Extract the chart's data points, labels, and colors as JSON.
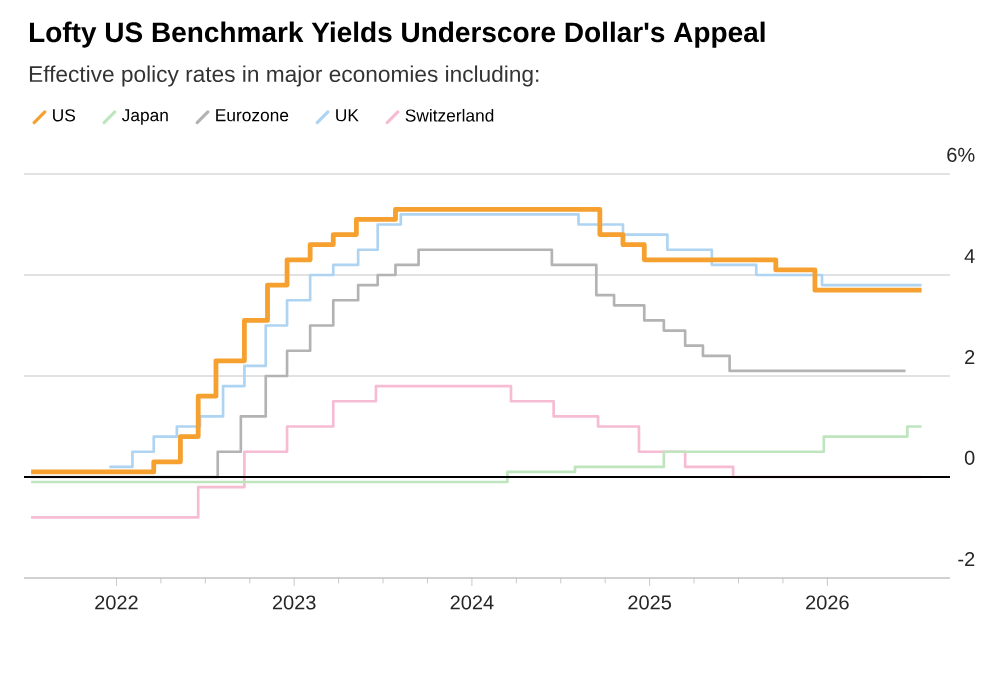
{
  "chart_data": {
    "type": "step",
    "title": "Lofty US Benchmark Yields Underscore Dollar's Appeal",
    "subtitle": "Effective policy rates in major economies including:",
    "series": [
      {
        "name": "US",
        "color": "#f5a02f",
        "x": [
          2021.52,
          2022.21,
          2022.36,
          2022.46,
          2022.56,
          2022.72,
          2022.85,
          2022.96,
          2023.09,
          2023.22,
          2023.35,
          2023.57,
          2024.72,
          2024.85,
          2024.97,
          2025.71,
          2025.93,
          2026.53
        ],
        "values": [
          0.1,
          0.3,
          0.8,
          1.6,
          2.3,
          3.1,
          3.8,
          4.3,
          4.6,
          4.8,
          5.1,
          5.3,
          4.8,
          4.6,
          4.3,
          4.1,
          3.7,
          3.7
        ]
      },
      {
        "name": "Japan",
        "color": "#bfe5bf",
        "x": [
          2021.52,
          2024.2,
          2024.58,
          2025.08,
          2025.98,
          2026.45,
          2026.53
        ],
        "values": [
          -0.1,
          0.1,
          0.2,
          0.5,
          0.8,
          1.0,
          1.0
        ]
      },
      {
        "name": "Eurozone",
        "color": "#b3b3b3",
        "x": [
          2021.52,
          2022.57,
          2022.7,
          2022.84,
          2022.96,
          2023.09,
          2023.22,
          2023.36,
          2023.47,
          2023.57,
          2023.7,
          2024.45,
          2024.7,
          2024.8,
          2024.97,
          2025.08,
          2025.2,
          2025.3,
          2025.45,
          2026.44
        ],
        "values": [
          0,
          0.5,
          1.2,
          2.0,
          2.5,
          3.0,
          3.5,
          3.8,
          4.0,
          4.2,
          4.5,
          4.2,
          3.6,
          3.4,
          3.1,
          2.9,
          2.6,
          2.4,
          2.1,
          2.1
        ]
      },
      {
        "name": "UK",
        "color": "#aed4f2",
        "x": [
          2021.96,
          2022.09,
          2022.21,
          2022.34,
          2022.47,
          2022.6,
          2022.72,
          2022.84,
          2022.96,
          2023.09,
          2023.22,
          2023.36,
          2023.47,
          2023.6,
          2024.6,
          2024.85,
          2025.1,
          2025.35,
          2025.6,
          2025.97,
          2026.53
        ],
        "values": [
          0.2,
          0.5,
          0.8,
          1.0,
          1.2,
          1.8,
          2.2,
          3.0,
          3.5,
          4.0,
          4.2,
          4.5,
          5.0,
          5.2,
          5.0,
          4.8,
          4.5,
          4.2,
          4.0,
          3.8,
          3.8
        ]
      },
      {
        "name": "Switzerland",
        "color": "#f5bcd3",
        "x": [
          2021.52,
          2022.46,
          2022.72,
          2022.96,
          2023.22,
          2023.46,
          2024.22,
          2024.46,
          2024.71,
          2024.94,
          2025.2,
          2025.47,
          2026.53
        ],
        "values": [
          -0.8,
          -0.2,
          0.5,
          1.0,
          1.5,
          1.8,
          1.5,
          1.2,
          1.0,
          0.5,
          0.2,
          0,
          0
        ]
      }
    ],
    "xlim": [
      2021.48,
      2026.69
    ],
    "xticks": [
      2022,
      2023,
      2024,
      2025,
      2026
    ],
    "ylim": [
      -2,
      6
    ],
    "yticks": [
      {
        "value": 6,
        "label": "6%"
      },
      4,
      2,
      0,
      -2
    ],
    "ref_lines": [
      {
        "axis": "y",
        "value": 0,
        "color": "#000000"
      }
    ],
    "grid": "y",
    "legend": "top left"
  }
}
